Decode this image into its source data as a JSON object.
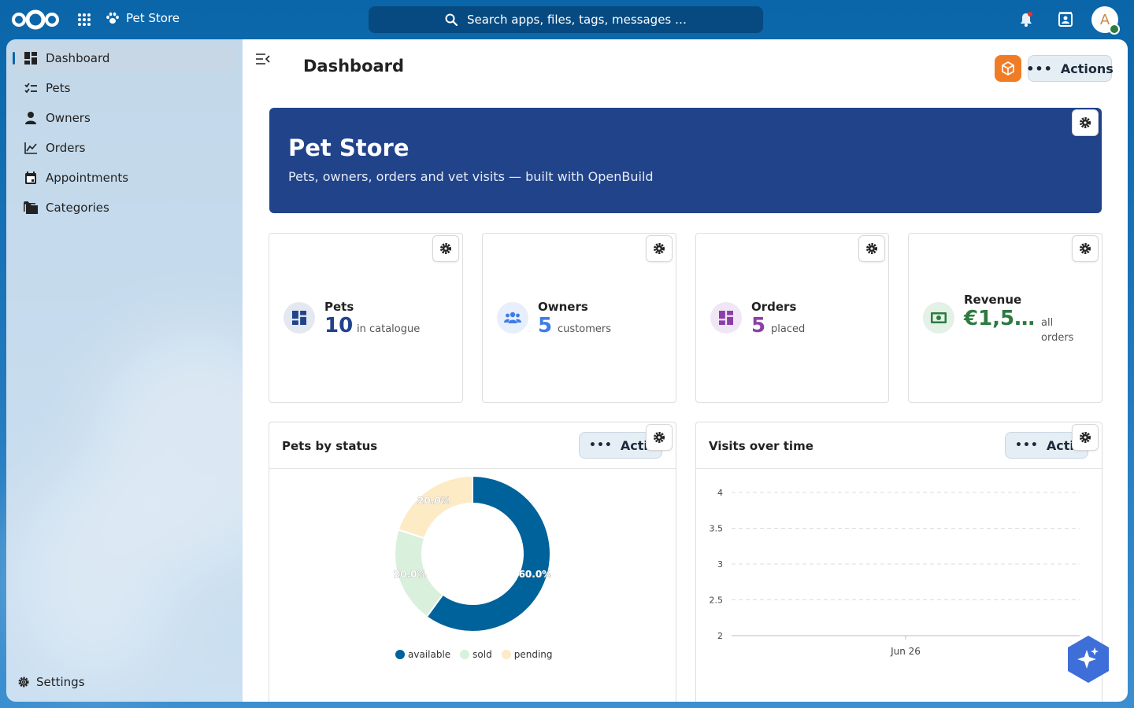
{
  "topbar": {
    "app_name": "Pet Store",
    "search_placeholder": "Search apps, files, tags, messages …",
    "avatar_initial": "A"
  },
  "sidebar": {
    "items": [
      {
        "label": "Dashboard",
        "icon": "dashboard-icon"
      },
      {
        "label": "Pets",
        "icon": "checklist-icon"
      },
      {
        "label": "Owners",
        "icon": "person-icon"
      },
      {
        "label": "Orders",
        "icon": "chart-line-icon"
      },
      {
        "label": "Appointments",
        "icon": "calendar-icon"
      },
      {
        "label": "Categories",
        "icon": "folder-icon"
      }
    ],
    "settings_label": "Settings"
  },
  "main": {
    "title": "Dashboard",
    "actions_label": "Actions",
    "hero": {
      "title": "Pet Store",
      "subtitle": "Pets, owners, orders and vet visits — built with OpenBuild"
    },
    "stats": [
      {
        "label": "Pets",
        "value": "10",
        "sub": "in catalogue",
        "color": "#21438a",
        "icon_bg": "#e4e8f0"
      },
      {
        "label": "Owners",
        "value": "5",
        "sub": "customers",
        "color": "#3d7ce8",
        "icon_bg": "#e7eefc"
      },
      {
        "label": "Orders",
        "value": "5",
        "sub": "placed",
        "color": "#8b3fa8",
        "icon_bg": "#f1e6f5"
      },
      {
        "label": "Revenue",
        "value": "€1,5…",
        "sub": "all orders",
        "color": "#2d7b41",
        "icon_bg": "#e3f1e6"
      }
    ],
    "panels": {
      "pets_by_status": {
        "title": "Pets by status",
        "actions_label": "Actions"
      },
      "visits_over_time": {
        "title": "Visits over time",
        "actions_label": "Actions"
      }
    }
  },
  "chart_data": [
    {
      "type": "pie",
      "title": "Pets by status",
      "categories": [
        "available",
        "sold",
        "pending"
      ],
      "values": [
        60.0,
        20.0,
        20.0
      ],
      "labels": [
        "60.0%",
        "20.0%",
        "20.0%"
      ],
      "colors": [
        "#00629a",
        "#d9f0dc",
        "#fdebc6"
      ],
      "legend": "bottom"
    },
    {
      "type": "line",
      "title": "Visits over time",
      "x_ticks": [
        "Jun 26"
      ],
      "y_ticks": [
        "4",
        "3.5",
        "3",
        "2.5",
        "2"
      ],
      "ylim": [
        2,
        4
      ],
      "grid": true
    }
  ]
}
